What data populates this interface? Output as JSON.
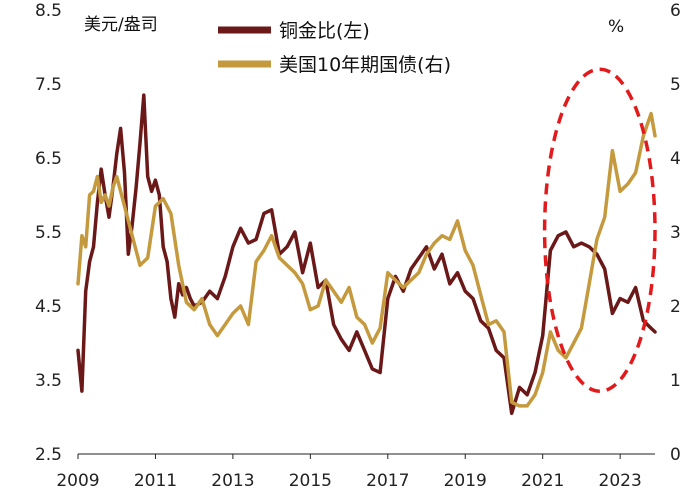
{
  "chart_data": {
    "type": "line",
    "left_axis_unit": "美元/盎司",
    "right_axis_unit": "%",
    "x_ticks": [
      "2009",
      "2011",
      "2013",
      "2015",
      "2017",
      "2019",
      "2021",
      "2023"
    ],
    "y_left_ticks": [
      "8.5",
      "7.5",
      "6.5",
      "5.5",
      "4.5",
      "3.5",
      "2.5"
    ],
    "y_right_ticks": [
      "6",
      "5",
      "4",
      "3",
      "2",
      "1",
      "0"
    ],
    "xlim": [
      2009,
      2023.9
    ],
    "ylim_left": [
      2.5,
      8.5
    ],
    "ylim_right": [
      0,
      6
    ],
    "legend_position": "top-center",
    "grid": false,
    "highlight": {
      "shape": "dashed-ellipse",
      "color": "#e31a1c",
      "x_range": [
        2021.05,
        2023.9
      ],
      "y_right_range": [
        0.85,
        5.2
      ]
    },
    "series": [
      {
        "name": "铜金比(左)",
        "axis": "left",
        "color": "#6b1818",
        "x": [
          2009.0,
          2009.1,
          2009.2,
          2009.3,
          2009.4,
          2009.5,
          2009.6,
          2009.7,
          2009.8,
          2009.9,
          2010.0,
          2010.1,
          2010.2,
          2010.3,
          2010.4,
          2010.5,
          2010.6,
          2010.7,
          2010.8,
          2010.9,
          2011.0,
          2011.1,
          2011.2,
          2011.3,
          2011.4,
          2011.5,
          2011.6,
          2011.7,
          2011.8,
          2011.9,
          2012.0,
          2012.2,
          2012.4,
          2012.6,
          2012.8,
          2013.0,
          2013.2,
          2013.4,
          2013.6,
          2013.8,
          2014.0,
          2014.2,
          2014.4,
          2014.6,
          2014.8,
          2015.0,
          2015.2,
          2015.4,
          2015.6,
          2015.8,
          2016.0,
          2016.2,
          2016.4,
          2016.6,
          2016.8,
          2017.0,
          2017.2,
          2017.4,
          2017.6,
          2017.8,
          2018.0,
          2018.2,
          2018.4,
          2018.6,
          2018.8,
          2019.0,
          2019.2,
          2019.4,
          2019.6,
          2019.8,
          2020.0,
          2020.2,
          2020.4,
          2020.6,
          2020.8,
          2021.0,
          2021.2,
          2021.4,
          2021.6,
          2021.8,
          2022.0,
          2022.2,
          2022.4,
          2022.6,
          2022.8,
          2023.0,
          2023.2,
          2023.4,
          2023.6,
          2023.8,
          2023.9
        ],
        "values": [
          3.9,
          3.35,
          4.7,
          5.1,
          5.3,
          5.9,
          6.35,
          6.0,
          5.7,
          6.1,
          6.55,
          6.9,
          6.3,
          5.2,
          5.6,
          6.1,
          6.7,
          7.35,
          6.25,
          6.05,
          6.2,
          6.0,
          5.3,
          5.1,
          4.6,
          4.35,
          4.8,
          4.65,
          4.75,
          4.6,
          4.5,
          4.55,
          4.7,
          4.6,
          4.9,
          5.3,
          5.55,
          5.35,
          5.4,
          5.75,
          5.8,
          5.2,
          5.3,
          5.5,
          4.95,
          5.35,
          4.75,
          4.85,
          4.25,
          4.05,
          3.9,
          4.15,
          3.9,
          3.65,
          3.6,
          4.6,
          4.9,
          4.7,
          5.0,
          5.15,
          5.3,
          5.0,
          5.2,
          4.8,
          4.95,
          4.7,
          4.6,
          4.3,
          4.2,
          3.9,
          3.8,
          3.05,
          3.4,
          3.3,
          3.6,
          4.1,
          5.25,
          5.45,
          5.5,
          5.3,
          5.35,
          5.3,
          5.2,
          5.0,
          4.4,
          4.6,
          4.55,
          4.75,
          4.3,
          4.2,
          4.15
        ]
      },
      {
        "name": "美国10年期国债(右)",
        "axis": "right",
        "color": "#c59a3e",
        "x": [
          2009.0,
          2009.1,
          2009.2,
          2009.3,
          2009.4,
          2009.5,
          2009.6,
          2009.7,
          2009.8,
          2009.9,
          2010.0,
          2010.2,
          2010.4,
          2010.6,
          2010.8,
          2011.0,
          2011.2,
          2011.4,
          2011.6,
          2011.8,
          2012.0,
          2012.2,
          2012.4,
          2012.6,
          2012.8,
          2013.0,
          2013.2,
          2013.4,
          2013.6,
          2013.8,
          2014.0,
          2014.2,
          2014.4,
          2014.6,
          2014.8,
          2015.0,
          2015.2,
          2015.4,
          2015.6,
          2015.8,
          2016.0,
          2016.2,
          2016.4,
          2016.6,
          2016.8,
          2017.0,
          2017.2,
          2017.4,
          2017.6,
          2017.8,
          2018.0,
          2018.2,
          2018.4,
          2018.6,
          2018.8,
          2019.0,
          2019.2,
          2019.4,
          2019.6,
          2019.8,
          2020.0,
          2020.2,
          2020.4,
          2020.6,
          2020.8,
          2021.0,
          2021.2,
          2021.4,
          2021.6,
          2021.8,
          2022.0,
          2022.2,
          2022.4,
          2022.6,
          2022.8,
          2023.0,
          2023.2,
          2023.4,
          2023.6,
          2023.8,
          2023.9
        ],
        "values": [
          2.3,
          2.95,
          2.8,
          3.5,
          3.55,
          3.75,
          3.4,
          3.5,
          3.35,
          3.6,
          3.75,
          3.35,
          2.95,
          2.55,
          2.65,
          3.35,
          3.45,
          3.25,
          2.55,
          2.05,
          1.95,
          2.1,
          1.75,
          1.6,
          1.75,
          1.9,
          2.0,
          1.75,
          2.6,
          2.75,
          2.95,
          2.65,
          2.55,
          2.45,
          2.3,
          1.95,
          2.0,
          2.35,
          2.2,
          2.05,
          2.25,
          1.85,
          1.75,
          1.5,
          1.7,
          2.45,
          2.35,
          2.25,
          2.35,
          2.45,
          2.7,
          2.85,
          2.95,
          2.9,
          3.15,
          2.75,
          2.55,
          2.15,
          1.75,
          1.8,
          1.65,
          0.7,
          0.65,
          0.65,
          0.8,
          1.1,
          1.65,
          1.4,
          1.3,
          1.5,
          1.7,
          2.3,
          2.9,
          3.2,
          4.1,
          3.55,
          3.65,
          3.8,
          4.3,
          4.6,
          4.3
        ]
      }
    ]
  }
}
